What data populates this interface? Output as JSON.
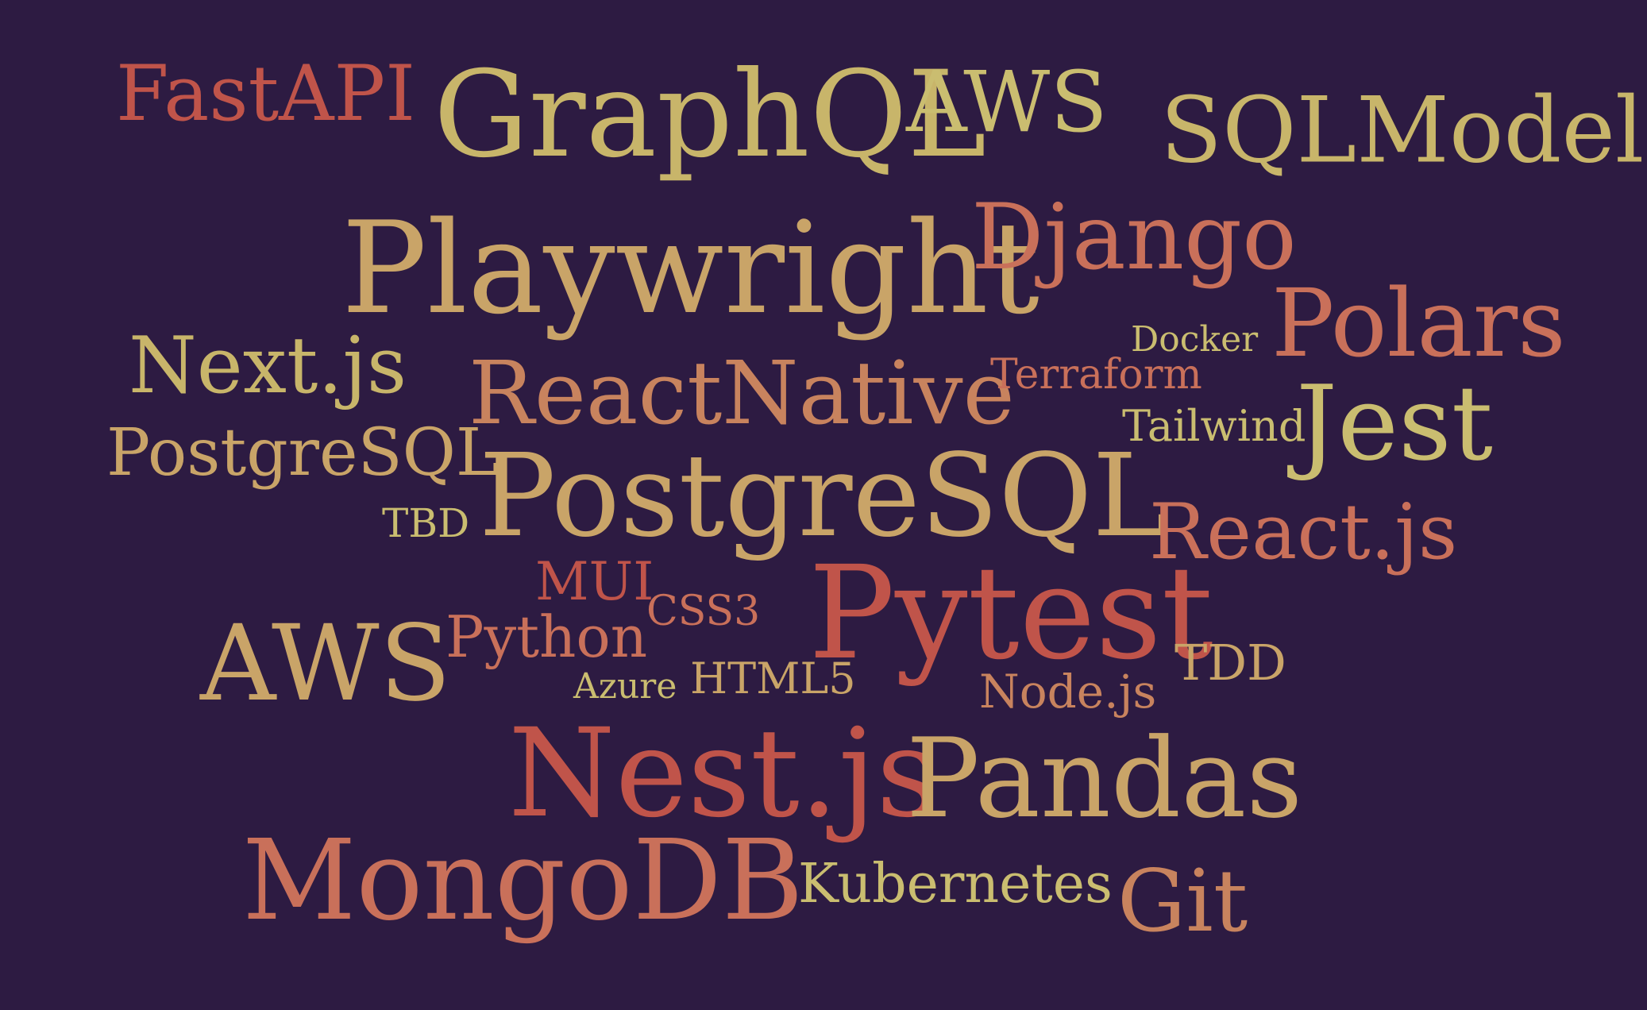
{
  "palette": {
    "background": "#2d1b42",
    "red": "#c0544a",
    "salmon": "#c9705a",
    "orange": "#c8835e",
    "tan": "#c9a468",
    "khaki": "#c8b56a",
    "gold": "#cabd70"
  },
  "words": [
    {
      "text": "FastAPI",
      "color": "#c0544a"
    },
    {
      "text": "GraphQL",
      "color": "#c8b56a"
    },
    {
      "text": "AWS",
      "color": "#cabd70"
    },
    {
      "text": "SQLModel",
      "color": "#c8b56a"
    },
    {
      "text": "Playwright",
      "color": "#c9a468"
    },
    {
      "text": "Django",
      "color": "#c9705a"
    },
    {
      "text": "Polars",
      "color": "#c9705a"
    },
    {
      "text": "Next.js",
      "color": "#c8b56a"
    },
    {
      "text": "Docker",
      "color": "#cabd70"
    },
    {
      "text": "ReactNative",
      "color": "#c8835e"
    },
    {
      "text": "Terraform",
      "color": "#c9705a"
    },
    {
      "text": "Jest",
      "color": "#cabd70"
    },
    {
      "text": "Tailwind",
      "color": "#cabd70"
    },
    {
      "text": "PostgreSQL",
      "color": "#c9a468"
    },
    {
      "text": "PostgreSQL",
      "color": "#c9a468"
    },
    {
      "text": "TBD",
      "color": "#cabd70"
    },
    {
      "text": "React.js",
      "color": "#c9705a"
    },
    {
      "text": "MUI",
      "color": "#c0544a"
    },
    {
      "text": "CSS3",
      "color": "#c9705a"
    },
    {
      "text": "Pytest",
      "color": "#c0544a"
    },
    {
      "text": "AWS",
      "color": "#c9a468"
    },
    {
      "text": "Python",
      "color": "#c9705a"
    },
    {
      "text": "TDD",
      "color": "#c9a468"
    },
    {
      "text": "Azure",
      "color": "#cabd70"
    },
    {
      "text": "HTML5",
      "color": "#c9a468"
    },
    {
      "text": "Node.js",
      "color": "#c8835e"
    },
    {
      "text": "Nest.js",
      "color": "#c0544a"
    },
    {
      "text": "Pandas",
      "color": "#c9a468"
    },
    {
      "text": "MongoDB",
      "color": "#c9705a"
    },
    {
      "text": "Kubernetes",
      "color": "#cabd70"
    },
    {
      "text": "Git",
      "color": "#c8835e"
    }
  ]
}
